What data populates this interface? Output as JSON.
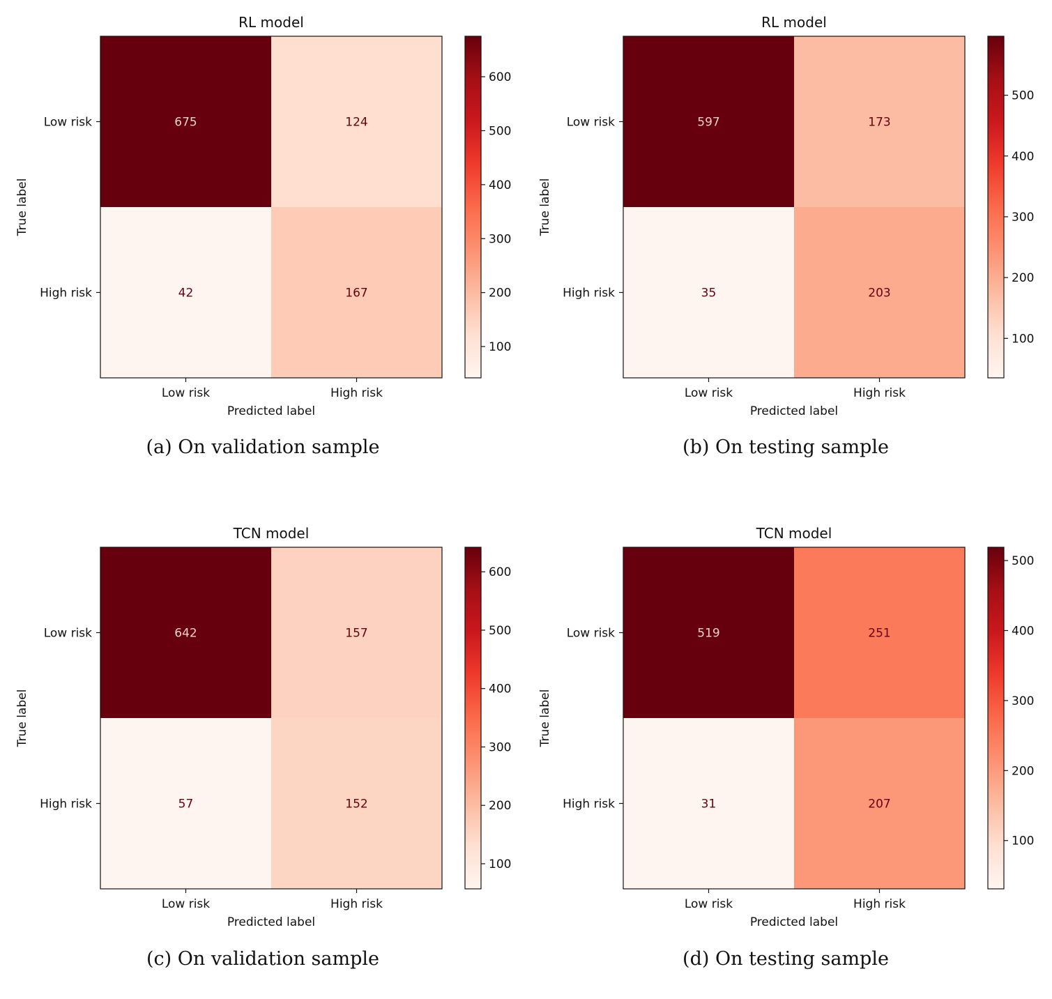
{
  "chart_data": [
    {
      "type": "heatmap",
      "title": "RL model",
      "caption": "(a) On validation sample",
      "xlabel": "Predicted label",
      "ylabel": "True label",
      "x_categories": [
        "Low risk",
        "High risk"
      ],
      "y_categories": [
        "Low risk",
        "High risk"
      ],
      "values": [
        [
          675,
          124
        ],
        [
          42,
          167
        ]
      ],
      "colormap": "Reds",
      "colorbar": {
        "range": [
          42,
          675
        ],
        "ticks": [
          100,
          200,
          300,
          400,
          500,
          600
        ]
      }
    },
    {
      "type": "heatmap",
      "title": "RL model",
      "caption": "(b) On testing sample",
      "xlabel": "Predicted label",
      "ylabel": "True label",
      "x_categories": [
        "Low risk",
        "High risk"
      ],
      "y_categories": [
        "Low risk",
        "High risk"
      ],
      "values": [
        [
          597,
          173
        ],
        [
          35,
          203
        ]
      ],
      "colormap": "Reds",
      "colorbar": {
        "range": [
          35,
          597
        ],
        "ticks": [
          100,
          200,
          300,
          400,
          500
        ]
      }
    },
    {
      "type": "heatmap",
      "title": "TCN model",
      "caption": "(c) On validation sample",
      "xlabel": "Predicted label",
      "ylabel": "True label",
      "x_categories": [
        "Low risk",
        "High risk"
      ],
      "y_categories": [
        "Low risk",
        "High risk"
      ],
      "values": [
        [
          642,
          157
        ],
        [
          57,
          152
        ]
      ],
      "colormap": "Reds",
      "colorbar": {
        "range": [
          57,
          642
        ],
        "ticks": [
          100,
          200,
          300,
          400,
          500,
          600
        ]
      }
    },
    {
      "type": "heatmap",
      "title": "TCN model",
      "caption": "(d) On testing sample",
      "xlabel": "Predicted label",
      "ylabel": "True label",
      "x_categories": [
        "Low risk",
        "High risk"
      ],
      "y_categories": [
        "Low risk",
        "High risk"
      ],
      "values": [
        [
          519,
          251
        ],
        [
          31,
          207
        ]
      ],
      "colormap": "Reds",
      "colorbar": {
        "range": [
          31,
          519
        ],
        "ticks": [
          100,
          200,
          300,
          400,
          500
        ]
      }
    }
  ],
  "colors": {
    "reds_scale": [
      "#fff5f0",
      "#fee0d2",
      "#fcbba1",
      "#fc9272",
      "#fb6a4a",
      "#ef3b2c",
      "#cb181d",
      "#a50f15",
      "#67000d"
    ],
    "light_text": "#f5d0c8",
    "dark_text": "#67000d"
  }
}
